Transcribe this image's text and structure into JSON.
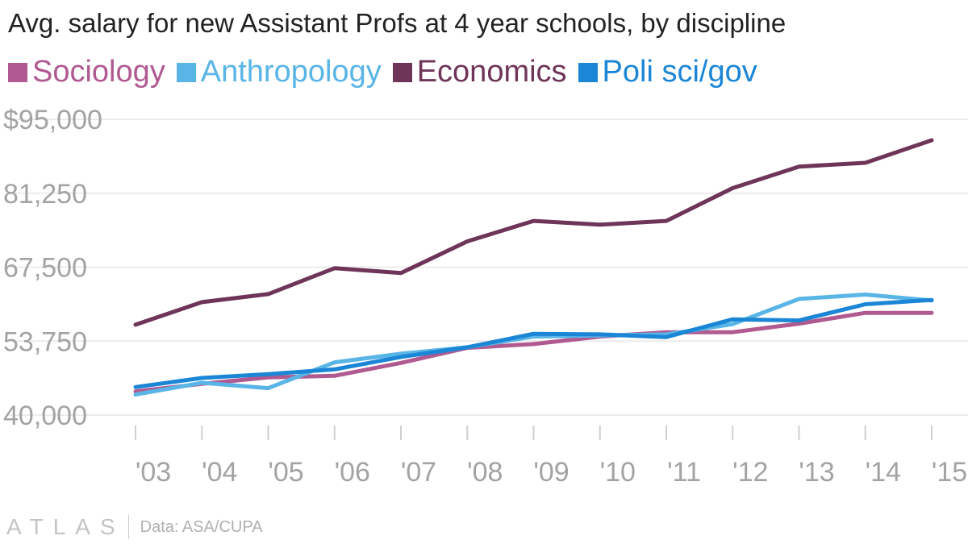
{
  "colors": {
    "sociology": "#b05a91",
    "anthropology": "#59b5e6",
    "economics": "#6e3558",
    "polisci": "#1b86d6",
    "grid": "#ececec",
    "tick": "#a3a3a3"
  },
  "footer": {
    "logo": "ATLAS",
    "source": "Data: ASA/CUPA"
  },
  "chart_data": {
    "type": "line",
    "title": "Avg. salary for new Assistant Profs at 4 year schools, by discipline",
    "xlabel": "",
    "ylabel": "",
    "categories": [
      "'03",
      "'04",
      "'05",
      "'06",
      "'07",
      "'08",
      "'09",
      "'10",
      "'11",
      "'12",
      "'13",
      "'14",
      "'15"
    ],
    "y_ticks": [
      40000,
      53750,
      67500,
      81250,
      95000
    ],
    "y_tick_labels": [
      "40,000",
      "53,750",
      "67,500",
      "81,250",
      "$95,000"
    ],
    "ylim": [
      40000,
      95000
    ],
    "grid": true,
    "legend": "top-left",
    "series": [
      {
        "name": "Sociology",
        "color_key": "sociology",
        "values": [
          44400,
          45800,
          47000,
          47300,
          49700,
          52500,
          53200,
          54600,
          55400,
          55400,
          57000,
          59000,
          59000
        ]
      },
      {
        "name": "Anthropology",
        "color_key": "anthropology",
        "values": [
          43800,
          46000,
          45000,
          49800,
          51400,
          52600,
          54600,
          54800,
          55000,
          56900,
          61600,
          62400,
          61300
        ]
      },
      {
        "name": "Economics",
        "color_key": "economics",
        "values": [
          56800,
          61000,
          62500,
          67300,
          66400,
          72300,
          76100,
          75400,
          76100,
          82200,
          86200,
          86900,
          91100
        ]
      },
      {
        "name": "Poli sci/gov",
        "color_key": "polisci",
        "values": [
          45200,
          46900,
          47600,
          48500,
          50800,
          52600,
          55100,
          55000,
          54500,
          57800,
          57600,
          60600,
          61400
        ]
      }
    ]
  }
}
